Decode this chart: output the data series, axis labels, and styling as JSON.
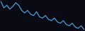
{
  "values": [
    10,
    5,
    7,
    4,
    6,
    9,
    7,
    3,
    1,
    3,
    0,
    -1,
    2,
    -2,
    -3,
    -1,
    -4,
    -5,
    -3,
    -6,
    -7,
    -5,
    -8,
    -9,
    -7,
    -10,
    -11,
    -9,
    -12
  ],
  "line_color": "#4a9fd4",
  "background_color": "#0a0a14",
  "linewidth": 0.9
}
